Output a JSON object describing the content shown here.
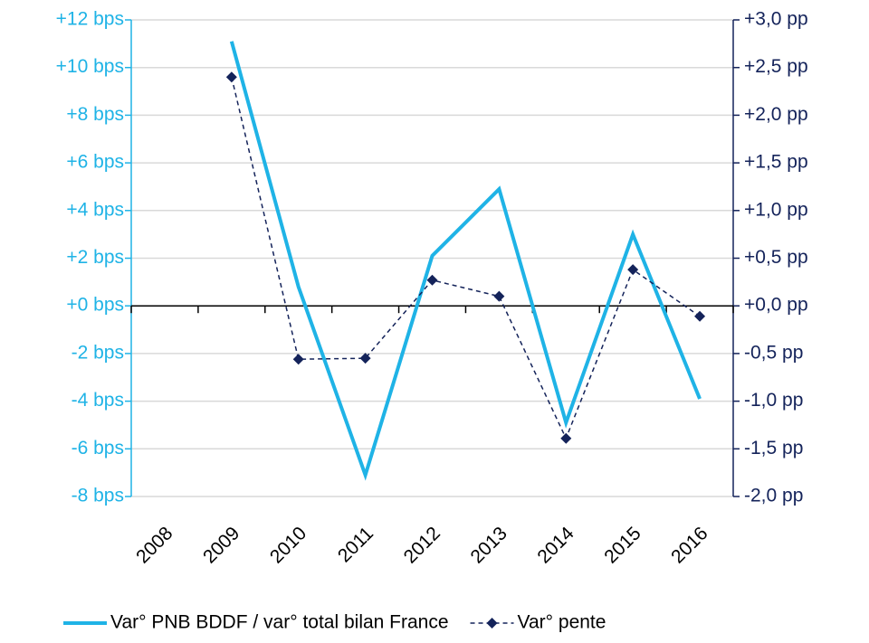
{
  "chart_data": {
    "type": "line",
    "categories": [
      "2008",
      "2009",
      "2010",
      "2011",
      "2012",
      "2013",
      "2014",
      "2015",
      "2016"
    ],
    "series": [
      {
        "name": "Var° PNB BDDF / var° total bilan France",
        "color": "#1fb3e6",
        "axis": "y",
        "values": [
          null,
          11.1,
          0.8,
          -7.1,
          2.1,
          4.9,
          -4.9,
          3.0,
          -3.9
        ]
      },
      {
        "name": "Var° pente",
        "color": "#14235a",
        "axis": "y2",
        "dashed": true,
        "marker": "diamond",
        "values": [
          null,
          2.4,
          -0.56,
          -0.55,
          0.27,
          0.1,
          -1.39,
          0.38,
          -0.11
        ]
      }
    ],
    "ylim": [
      -8,
      12
    ],
    "yticks": [
      {
        "value": -8,
        "label": "-8 bps"
      },
      {
        "value": -6,
        "label": "-6 bps"
      },
      {
        "value": -4,
        "label": "-4 bps"
      },
      {
        "value": -2,
        "label": "-2 bps"
      },
      {
        "value": 0,
        "label": "+0 bps"
      },
      {
        "value": 2,
        "label": "+2 bps"
      },
      {
        "value": 4,
        "label": "+4 bps"
      },
      {
        "value": 6,
        "label": "+6 bps"
      },
      {
        "value": 8,
        "label": "+8 bps"
      },
      {
        "value": 10,
        "label": "+10 bps"
      },
      {
        "value": 12,
        "label": "+12 bps"
      }
    ],
    "y2lim": [
      -2,
      3
    ],
    "y2ticks": [
      {
        "value": -2,
        "label": "-2,0 pp"
      },
      {
        "value": -1.5,
        "label": "-1,5 pp"
      },
      {
        "value": -1,
        "label": "-1,0 pp"
      },
      {
        "value": -0.5,
        "label": "-0,5 pp"
      },
      {
        "value": 0,
        "label": "+0,0 pp"
      },
      {
        "value": 0.5,
        "label": "+0,5 pp"
      },
      {
        "value": 1,
        "label": "+1,0 pp"
      },
      {
        "value": 1.5,
        "label": "+1,5 pp"
      },
      {
        "value": 2,
        "label": "+2,0 pp"
      },
      {
        "value": 2.5,
        "label": "+2,5 pp"
      },
      {
        "value": 3,
        "label": "+3,0 pp"
      }
    ],
    "grid": true,
    "legend": "bottom",
    "y_color": "#1fb3e6",
    "y2_color": "#14235a"
  }
}
